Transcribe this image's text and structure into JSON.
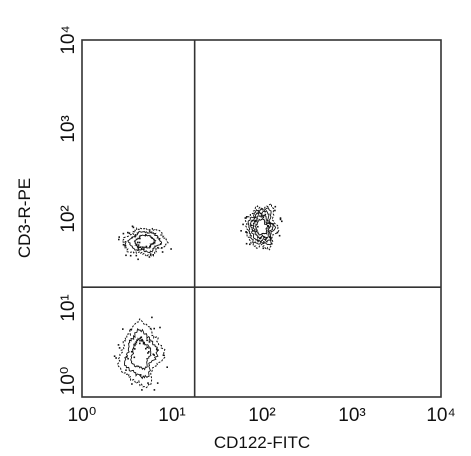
{
  "chart_data": {
    "type": "contour",
    "x_scale": "log",
    "y_scale": "log",
    "xlabel": "CD122-FITC",
    "ylabel": "CD3-R-PE",
    "xlim": [
      1,
      10000
    ],
    "ylim": [
      1,
      10000
    ],
    "x_tick_labels": [
      "10⁰",
      "10¹",
      "10²",
      "10³",
      "10⁴"
    ],
    "y_tick_labels": [
      "10⁰",
      "10¹",
      "10²",
      "10³",
      "10⁴"
    ],
    "grid": false,
    "quadrant_gate": {
      "x": 18,
      "y": 17
    },
    "populations": [
      {
        "center_x": 5,
        "center_y": 55,
        "spread_x": 0.22,
        "spread_y": 0.15,
        "levels": 3
      },
      {
        "center_x": 4.5,
        "center_y": 3,
        "spread_x": 0.22,
        "spread_y": 0.33,
        "levels": 3
      },
      {
        "center_x": 100,
        "center_y": 80,
        "spread_x": 0.17,
        "spread_y": 0.23,
        "levels": 5
      }
    ],
    "colors": {
      "contour": "#111111",
      "frame": "#333333"
    }
  }
}
